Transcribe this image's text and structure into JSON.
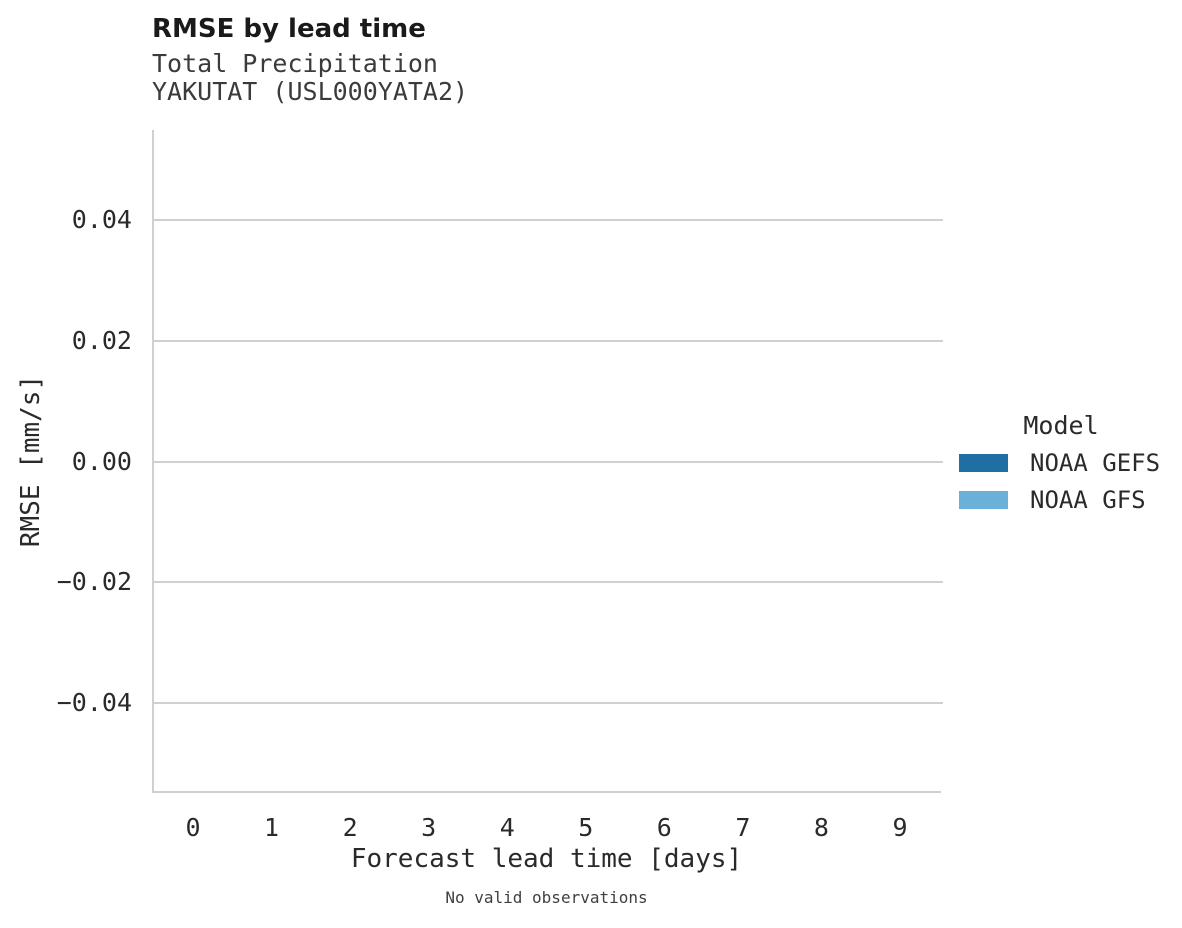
{
  "chart_data": {
    "type": "line",
    "title": "RMSE by lead time",
    "subtitle_variable": "Total Precipitation",
    "subtitle_station": "YAKUTAT (USL000YATA2)",
    "xlabel": "Forecast lead time [days]",
    "ylabel": "RMSE [mm/s]",
    "caption": "No valid observations",
    "x_ticks": [
      "0",
      "1",
      "2",
      "3",
      "4",
      "5",
      "6",
      "7",
      "8",
      "9"
    ],
    "y_ticks": [
      {
        "value": 0.04,
        "label": "0.04"
      },
      {
        "value": 0.02,
        "label": "0.02"
      },
      {
        "value": 0.0,
        "label": "0.00"
      },
      {
        "value": -0.02,
        "label": "−0.02"
      },
      {
        "value": -0.04,
        "label": "−0.04"
      }
    ],
    "ylim": [
      -0.055,
      0.055
    ],
    "grid": "horizontal-only",
    "legend": {
      "title": "Model",
      "position": "right-center",
      "entries": [
        {
          "label": "NOAA GEFS",
          "color": "#1f6fa3"
        },
        {
          "label": "NOAA GFS",
          "color": "#6bb0d9"
        }
      ]
    },
    "series": [
      {
        "name": "NOAA GEFS",
        "color": "#1f6fa3",
        "x": [],
        "y": []
      },
      {
        "name": "NOAA GFS",
        "color": "#6bb0d9",
        "x": [],
        "y": []
      }
    ]
  }
}
